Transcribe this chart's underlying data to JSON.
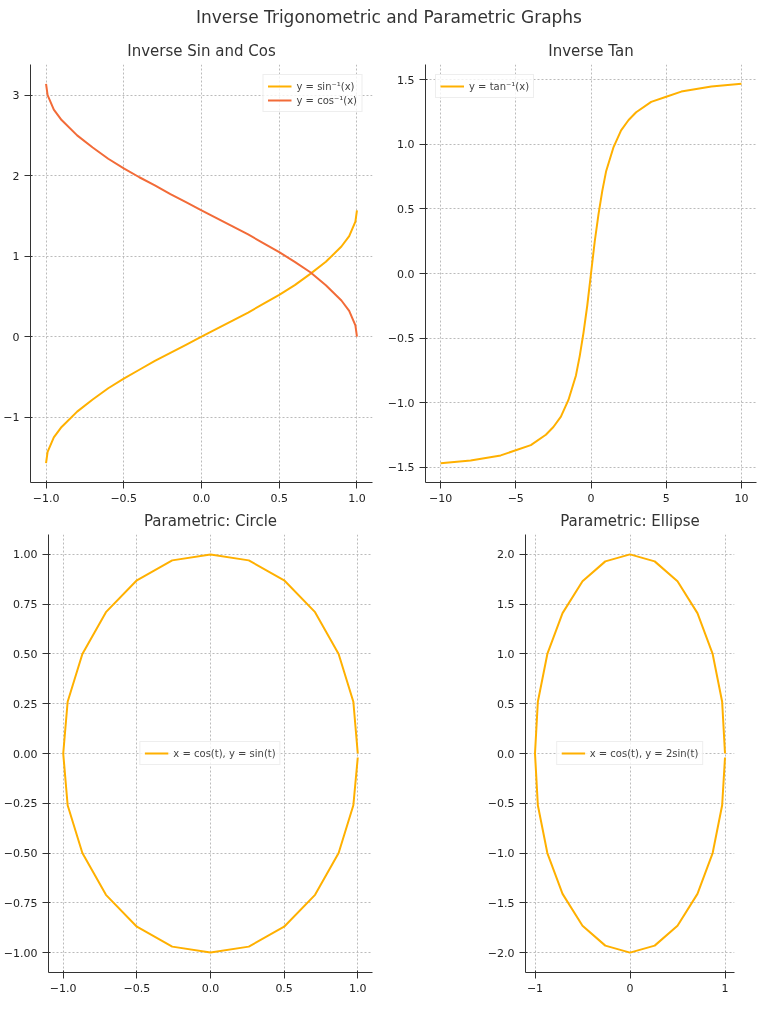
{
  "chart_data": [
    {
      "type": "line",
      "title": "Inverse Sin and Cos",
      "annotations": [
        "Inverse Trigonometric and Parametric Graphs"
      ],
      "legend": "top right",
      "grid": true,
      "xlim": [
        -1.1,
        1.1
      ],
      "ylim": [
        -1.81,
        3.38
      ],
      "xticks": [
        {
          "value": -1,
          "label": "−1.0"
        },
        {
          "value": -0.5,
          "label": "−0.5"
        },
        {
          "value": 0,
          "label": "0.0"
        },
        0.5,
        {
          "value": 1,
          "label": "1.0"
        }
      ],
      "yticks": [
        {
          "value": -1,
          "label": "−1"
        },
        0,
        1,
        2,
        3
      ],
      "series": [
        {
          "name": "y = sin⁻¹(x)",
          "color": "#ffb000",
          "x": [
            -1,
            -0.99,
            -0.95,
            -0.9,
            -0.8,
            -0.7,
            -0.6,
            -0.5,
            -0.4,
            -0.3,
            -0.2,
            -0.1,
            0,
            0.1,
            0.2,
            0.3,
            0.4,
            0.5,
            0.6,
            0.7,
            0.8,
            0.9,
            0.95,
            0.99,
            1
          ],
          "values": [
            -1.57,
            -1.43,
            -1.25,
            -1.12,
            -0.93,
            -0.78,
            -0.64,
            -0.52,
            -0.41,
            -0.3,
            -0.2,
            -0.1,
            0,
            0.1,
            0.2,
            0.3,
            0.41,
            0.52,
            0.64,
            0.78,
            0.93,
            1.12,
            1.25,
            1.43,
            1.57
          ]
        },
        {
          "name": "y = cos⁻¹(x)",
          "color": "#f26b38",
          "x": [
            -1,
            -0.99,
            -0.95,
            -0.9,
            -0.8,
            -0.7,
            -0.6,
            -0.5,
            -0.4,
            -0.3,
            -0.2,
            -0.1,
            0,
            0.1,
            0.2,
            0.3,
            0.4,
            0.5,
            0.6,
            0.7,
            0.8,
            0.9,
            0.95,
            0.99,
            1
          ],
          "values": [
            3.14,
            3.0,
            2.82,
            2.69,
            2.5,
            2.35,
            2.21,
            2.09,
            1.98,
            1.88,
            1.77,
            1.67,
            1.57,
            1.47,
            1.37,
            1.27,
            1.16,
            1.05,
            0.93,
            0.8,
            0.64,
            0.45,
            0.32,
            0.14,
            0
          ]
        }
      ]
    },
    {
      "type": "line",
      "title": "Inverse Tan",
      "legend": "top left",
      "grid": true,
      "xlim": [
        -11,
        11
      ],
      "ylim": [
        -1.62,
        1.62
      ],
      "xticks": [
        {
          "value": -10,
          "label": "−10"
        },
        {
          "value": -5,
          "label": "−5"
        },
        0,
        5,
        10
      ],
      "yticks": [
        {
          "value": -1.5,
          "label": "−1.5"
        },
        {
          "value": -1,
          "label": "−1.0"
        },
        {
          "value": -0.5,
          "label": "−0.5"
        },
        {
          "value": 0,
          "label": "0.0"
        },
        0.5,
        {
          "value": 1,
          "label": "1.0"
        },
        1.5
      ],
      "series": [
        {
          "name": "y = tan⁻¹(x)",
          "color": "#ffb000",
          "x": [
            -10,
            -8,
            -6,
            -5,
            -4,
            -3,
            -2.5,
            -2,
            -1.5,
            -1,
            -0.75,
            -0.5,
            -0.25,
            0,
            0.25,
            0.5,
            0.75,
            1,
            1.5,
            2,
            2.5,
            3,
            4,
            5,
            6,
            8,
            10
          ],
          "values": [
            -1.47,
            -1.45,
            -1.41,
            -1.37,
            -1.33,
            -1.25,
            -1.19,
            -1.11,
            -0.98,
            -0.79,
            -0.64,
            -0.46,
            -0.25,
            0,
            0.25,
            0.46,
            0.64,
            0.79,
            0.98,
            1.11,
            1.19,
            1.25,
            1.33,
            1.37,
            1.41,
            1.45,
            1.47
          ]
        }
      ]
    },
    {
      "type": "line",
      "title": "Parametric: Circle",
      "legend": "center",
      "grid": true,
      "xlim": [
        -1.1,
        1.1
      ],
      "ylim": [
        -1.1,
        1.1
      ],
      "xticks": [
        {
          "value": -1,
          "label": "−1.0"
        },
        {
          "value": -0.5,
          "label": "−0.5"
        },
        {
          "value": 0,
          "label": "0.0"
        },
        0.5,
        {
          "value": 1,
          "label": "1.0"
        }
      ],
      "yticks": [
        {
          "value": -1,
          "label": "−1.00"
        },
        {
          "value": -0.75,
          "label": "−0.75"
        },
        {
          "value": -0.5,
          "label": "−0.50"
        },
        {
          "value": -0.25,
          "label": "−0.25"
        },
        {
          "value": 0,
          "label": "0.00"
        },
        0.25,
        {
          "value": 0.5,
          "label": "0.50"
        },
        0.75,
        {
          "value": 1,
          "label": "1.00"
        }
      ],
      "series": [
        {
          "name": "x = cos(t), y = sin(t)",
          "color": "#ffb000",
          "x": [
            1,
            0.97,
            0.87,
            0.71,
            0.5,
            0.26,
            0,
            -0.26,
            -0.5,
            -0.71,
            -0.87,
            -0.97,
            -1,
            -0.97,
            -0.87,
            -0.71,
            -0.5,
            -0.26,
            0,
            0.26,
            0.5,
            0.71,
            0.87,
            0.97,
            1
          ],
          "values": [
            0,
            0.26,
            0.5,
            0.71,
            0.87,
            0.97,
            1,
            0.97,
            0.87,
            0.71,
            0.5,
            0.26,
            0,
            -0.26,
            -0.5,
            -0.71,
            -0.87,
            -0.97,
            -1,
            -0.97,
            -0.87,
            -0.71,
            -0.5,
            -0.26,
            -0.02
          ]
        }
      ]
    },
    {
      "type": "line",
      "title": "Parametric: Ellipse",
      "legend": "center",
      "grid": true,
      "xlim": [
        -1.1,
        1.1
      ],
      "ylim": [
        -2.2,
        2.2
      ],
      "xticks": [
        {
          "value": -1,
          "label": "−1"
        },
        0,
        1
      ],
      "yticks": [
        {
          "value": -2,
          "label": "−2.0"
        },
        {
          "value": -1.5,
          "label": "−1.5"
        },
        {
          "value": -1,
          "label": "−1.0"
        },
        {
          "value": -0.5,
          "label": "−0.5"
        },
        {
          "value": 0,
          "label": "0.0"
        },
        0.5,
        {
          "value": 1,
          "label": "1.0"
        },
        1.5,
        {
          "value": 2,
          "label": "2.0"
        }
      ],
      "series": [
        {
          "name": "x = cos(t), y = 2sin(t)",
          "color": "#ffb000",
          "x": [
            1,
            0.97,
            0.87,
            0.71,
            0.5,
            0.26,
            0,
            -0.26,
            -0.5,
            -0.71,
            -0.87,
            -0.97,
            -1,
            -0.97,
            -0.87,
            -0.71,
            -0.5,
            -0.26,
            0,
            0.26,
            0.5,
            0.71,
            0.87,
            0.97,
            1
          ],
          "values": [
            0,
            0.52,
            1,
            1.41,
            1.73,
            1.93,
            2,
            1.93,
            1.73,
            1.41,
            1,
            0.52,
            0,
            -0.52,
            -1,
            -1.41,
            -1.73,
            -1.93,
            -2,
            -1.93,
            -1.73,
            -1.41,
            -1,
            -0.52,
            -0.04
          ]
        }
      ]
    }
  ]
}
